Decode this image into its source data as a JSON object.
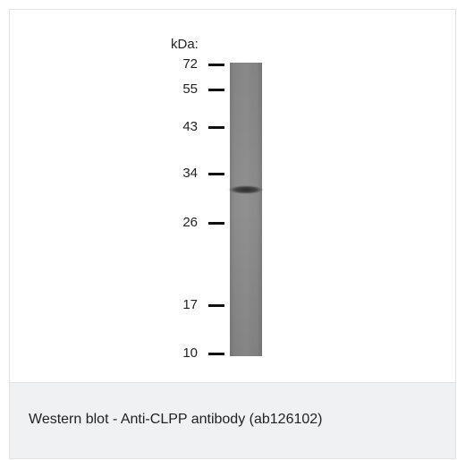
{
  "figure": {
    "unit_label": "kDa:",
    "markers": [
      {
        "label": "72",
        "kda": 72
      },
      {
        "label": "55",
        "kda": 55
      },
      {
        "label": "43",
        "kda": 43
      },
      {
        "label": "34",
        "kda": 34
      },
      {
        "label": "26",
        "kda": 26
      },
      {
        "label": "17",
        "kda": 17
      },
      {
        "label": "10",
        "kda": 10
      }
    ],
    "band_kda": 31
  },
  "caption": {
    "text": "Western blot - Anti-CLPP antibody (ab126102)"
  },
  "colors": {
    "lane": "#8a8a8a",
    "band": "#333333",
    "caption_bg": "#f0f1f2",
    "border": "#e3e3e3"
  }
}
